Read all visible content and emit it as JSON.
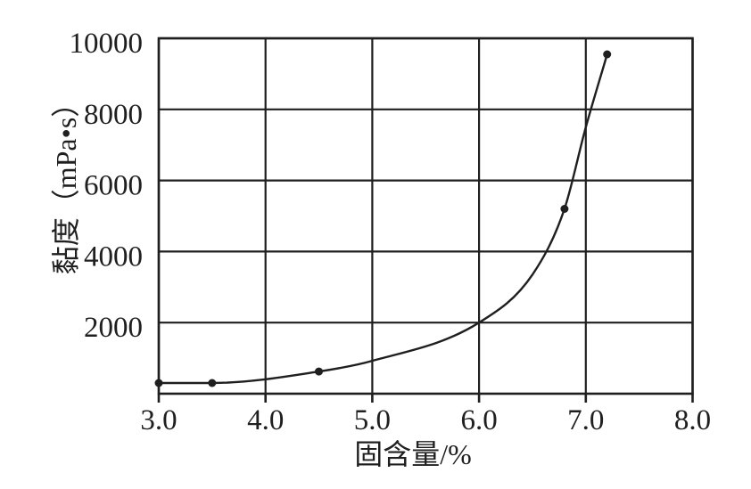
{
  "figure": {
    "background": "#ffffff",
    "line_color": "#1f1f1f",
    "text_color": "#1f1f1f"
  },
  "chart_data": {
    "type": "line",
    "title": "",
    "xlabel": "固含量/%",
    "ylabel": "黏度（mPa•s）",
    "xlim": [
      3.0,
      8.0
    ],
    "ylim": [
      0,
      10000
    ],
    "grid": true,
    "legend": null,
    "x_ticks": [
      {
        "value": 3.0,
        "label": "3.0"
      },
      {
        "value": 4.0,
        "label": "4.0"
      },
      {
        "value": 5.0,
        "label": "5.0"
      },
      {
        "value": 6.0,
        "label": "6.0"
      },
      {
        "value": 7.0,
        "label": "7.0"
      },
      {
        "value": 8.0,
        "label": "8.0"
      }
    ],
    "y_ticks": [
      {
        "value": 2000,
        "label": "2000"
      },
      {
        "value": 4000,
        "label": "4000"
      },
      {
        "value": 6000,
        "label": "6000"
      },
      {
        "value": 8000,
        "label": "8000"
      },
      {
        "value": 10000,
        "label": "10000"
      }
    ],
    "series": [
      {
        "name": "viscosity-vs-solid-content",
        "marker": "circle",
        "points": [
          [
            3.0,
            300
          ],
          [
            3.5,
            300
          ],
          [
            4.5,
            625
          ],
          [
            6.8,
            5200
          ],
          [
            7.2,
            9550
          ]
        ],
        "curve_anchors": [
          [
            3.0,
            300
          ],
          [
            3.5,
            300
          ],
          [
            4.5,
            625
          ],
          [
            5.0,
            925
          ],
          [
            6.0,
            2000
          ],
          [
            6.5,
            3350
          ],
          [
            6.8,
            5200
          ],
          [
            7.0,
            7500
          ],
          [
            7.2,
            9550
          ]
        ]
      }
    ]
  }
}
